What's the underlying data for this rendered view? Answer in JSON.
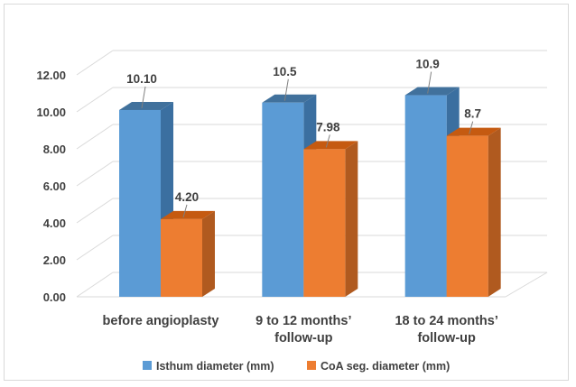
{
  "chart_data": {
    "type": "bar",
    "style": "3d-clustered-column",
    "categories": [
      [
        "before angioplasty"
      ],
      [
        "9 to 12 months’",
        "follow-up"
      ],
      [
        "18 to 24 months’",
        "follow-up"
      ]
    ],
    "series": [
      {
        "name": "Isthum diameter (mm)",
        "values": [
          10.1,
          10.5,
          10.9
        ],
        "labels": [
          "10.10",
          "10.5",
          "10.9"
        ],
        "color": "#5b9bd5",
        "side_color": "#3b6fa0",
        "top_color": "#41719c"
      },
      {
        "name": "CoA seg. diameter (mm)",
        "values": [
          4.2,
          7.98,
          8.7
        ],
        "labels": [
          "4.20",
          "7.98",
          "8.7"
        ],
        "color": "#ed7d31",
        "side_color": "#b05a1f",
        "top_color": "#c55a11"
      }
    ],
    "ylim": [
      0,
      12
    ],
    "yticks": [
      "0.00",
      "2.00",
      "4.00",
      "6.00",
      "8.00",
      "10.00",
      "12.00"
    ],
    "grid": true,
    "legend_position": "bottom",
    "title": "",
    "xlabel": "",
    "ylabel": ""
  }
}
